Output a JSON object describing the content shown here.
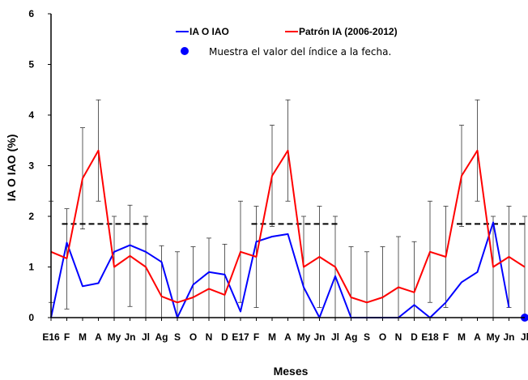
{
  "chart_data": {
    "type": "line",
    "xlabel": "Meses",
    "ylabel": "IA O IAO (%)",
    "ylim": [
      0,
      6
    ],
    "yticks": [
      "0",
      "1",
      "2",
      "3",
      "4",
      "5",
      "6"
    ],
    "categories": [
      "E16",
      "F",
      "M",
      "A",
      "My",
      "Jn",
      "Jl",
      "Ag",
      "S",
      "O",
      "N",
      "D",
      "E17",
      "F",
      "M",
      "A",
      "My",
      "Jn",
      "Jl",
      "Ag",
      "S",
      "O",
      "N",
      "D",
      "E18",
      "F",
      "M",
      "A",
      "My",
      "Jn",
      "Jl"
    ],
    "series": [
      {
        "name": "IA O IAO",
        "color": "#0000ff",
        "values": [
          0,
          1.48,
          0.62,
          0.68,
          1.3,
          1.43,
          1.3,
          1.1,
          0,
          0.65,
          0.9,
          0.85,
          0.12,
          1.5,
          1.6,
          1.65,
          0.6,
          0,
          0.82,
          0,
          0,
          0,
          0,
          0.25,
          0,
          0.3,
          0.7,
          0.9,
          1.88,
          0.2,
          null
        ]
      },
      {
        "name": "Patrón IA (2006-2012)",
        "color": "#ff0000",
        "values": [
          1.3,
          1.17,
          2.75,
          3.3,
          1.0,
          1.22,
          1.0,
          0.42,
          0.3,
          0.4,
          0.57,
          0.45,
          1.3,
          1.2,
          2.8,
          3.3,
          1.0,
          1.2,
          1.0,
          0.4,
          0.3,
          0.4,
          0.6,
          0.5,
          1.3,
          1.2,
          2.8,
          3.3,
          1.0,
          1.2,
          1.0
        ]
      }
    ],
    "error_bars": {
      "series": "Patrón IA (2006-2012)",
      "upper": [
        2.3,
        2.15,
        3.75,
        4.3,
        2.0,
        2.22,
        2.0,
        1.42,
        1.3,
        1.4,
        1.57,
        1.45,
        2.3,
        2.2,
        3.8,
        4.3,
        2.0,
        2.2,
        2.0,
        1.4,
        1.3,
        1.4,
        1.6,
        1.5,
        2.3,
        2.2,
        3.8,
        4.3,
        2.0,
        2.2,
        2.0
      ],
      "lower": [
        0.3,
        0.17,
        1.75,
        2.3,
        0,
        0.22,
        0,
        0,
        0,
        0,
        0,
        0,
        0.3,
        0.2,
        1.8,
        2.3,
        0,
        0.2,
        0,
        0,
        0,
        0,
        0,
        0,
        0.3,
        0.2,
        1.8,
        2.3,
        0,
        0.2,
        0
      ]
    },
    "threshold_segments": [
      {
        "from": 1,
        "to": 6,
        "value": 1.85
      },
      {
        "from": 13,
        "to": 18,
        "value": 1.85
      },
      {
        "from": 26,
        "to": 30,
        "value": 1.85
      }
    ],
    "current_point": {
      "index": 30,
      "value": 0,
      "color": "#0000ff"
    },
    "legend": {
      "placement": "top",
      "entries": [
        {
          "label": "IA O IAO",
          "color": "#0000ff"
        },
        {
          "label": "Patrón IA (2006-2012)",
          "color": "#ff0000"
        }
      ],
      "note": "Muestra el valor del índice a la fecha."
    },
    "grid": false
  }
}
